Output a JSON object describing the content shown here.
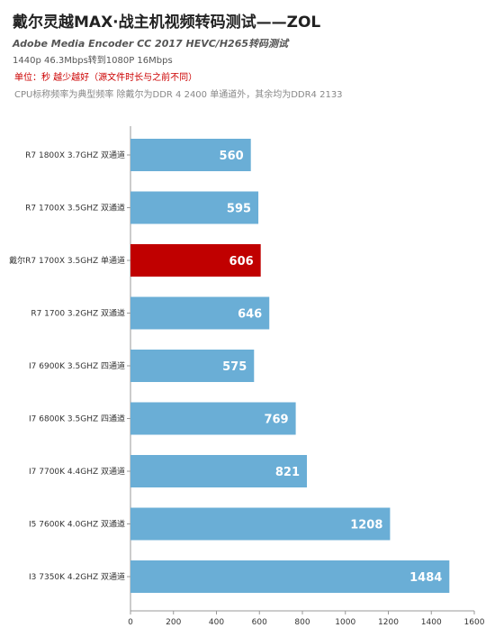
{
  "header": {
    "title": "戴尔灵越MAX·战主机视频转码测试——ZOL",
    "subtitle": "Adobe Media Encoder CC 2017 HEVC/H265转码测试",
    "note_resolution": "1440p 46.3Mbps转到1080P 16Mbps",
    "note_unit": "单位：秒 越少越好（源文件时长与之前不同）",
    "note_cpu": "CPU标称频率为典型频率 除戴尔为DDR 4 2400 单通道外，其余均为DDR4 2133"
  },
  "chart_data": {
    "type": "bar",
    "orientation": "horizontal",
    "title": "戴尔灵越MAX·战主机视频转码测试——ZOL",
    "subtitle": "Adobe Media Encoder CC 2017 HEVC/H265转码测试",
    "xlabel": "",
    "ylabel": "",
    "categories": [
      "R7 1800X 3.7GHZ 双通道",
      "R7 1700X 3.5GHZ 双通道",
      "戴尔R7 1700X 3.5GHZ 单通道",
      "R7 1700   3.2GHZ 双通道",
      "I7 6900K 3.5GHZ 四通道",
      "I7 6800K 3.5GHZ 四通道",
      "I7 7700K 4.4GHZ 双通道",
      "I5 7600K 4.0GHZ 双通道",
      "I3 7350K 4.2GHZ 双通道"
    ],
    "values": [
      560,
      595,
      606,
      646,
      575,
      769,
      821,
      1208,
      1484
    ],
    "highlight_index": 2,
    "xlim": [
      0,
      1600
    ],
    "xticks": [
      0,
      200,
      400,
      600,
      800,
      1000,
      1200,
      1400,
      1600
    ],
    "grid": false,
    "colors": {
      "bar": "#6aaed6",
      "highlight": "#c00000",
      "axis": "#999999"
    }
  }
}
